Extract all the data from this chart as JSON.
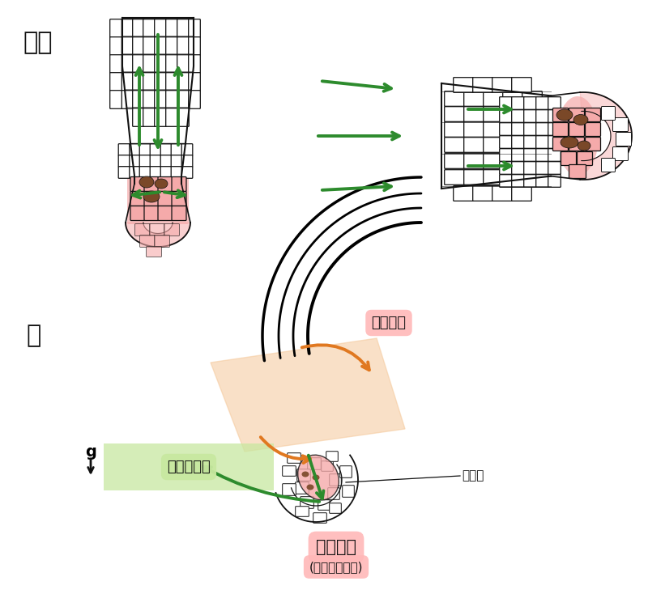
{
  "title_top": "根尖",
  "title_bottom": "根",
  "label_pian": "偏转生长",
  "label_sheng": "生长素传输",
  "label_fen": "淀粉体",
  "label_zhu": "柱状细胞",
  "label_zhu2": "(重力感受细胞)",
  "label_g": "g",
  "pink": "#F5AAAA",
  "dark_pink": "#C06060",
  "brown": "#7A4828",
  "green": "#2D8B2D",
  "orange": "#E07820",
  "light_orange": "#F5C89A",
  "light_green": "#C8E8A0",
  "light_pink": "#FFB8B8",
  "bg": "#FFFFFF",
  "black": "#111111"
}
